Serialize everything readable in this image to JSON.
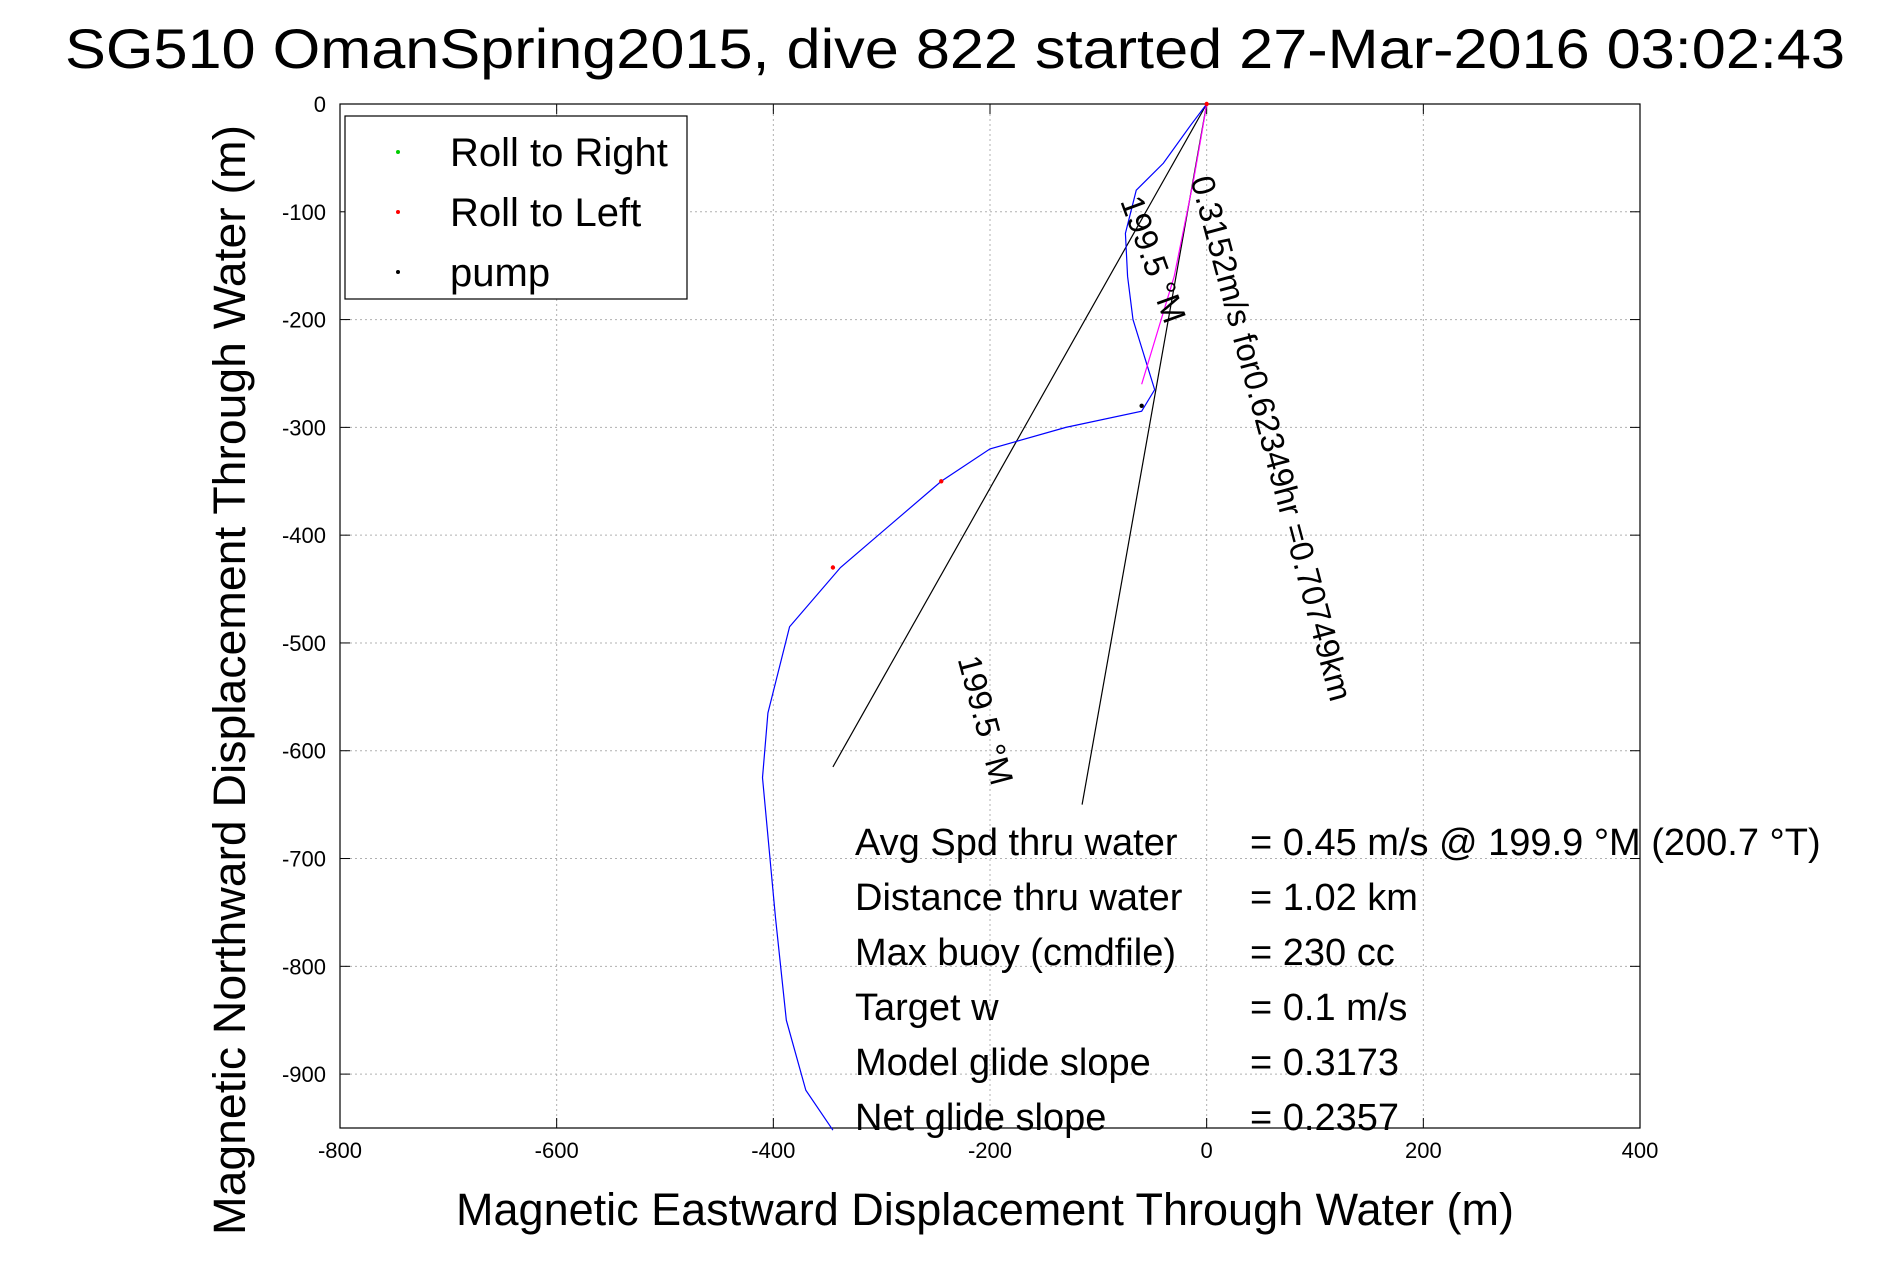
{
  "chart_data": {
    "type": "line",
    "title": "SG510 OmanSpring2015, dive 822 started 27-Mar-2016 03:02:43",
    "xlabel": "Magnetic Eastward Displacement Through Water (m)",
    "ylabel": "Magnetic Northward Displacement Through Water (m)",
    "xlim": [
      -800,
      400
    ],
    "ylim": [
      -950,
      0
    ],
    "grid": true,
    "xticks": [
      "-800",
      "-600",
      "-400",
      "-200",
      "0",
      "200",
      "400"
    ],
    "yticks": [
      "0",
      "-100",
      "-200",
      "-300",
      "-400",
      "-500",
      "-600",
      "-700",
      "-800",
      "-900"
    ],
    "legend": {
      "placement": "top-left",
      "entries": [
        {
          "label": "Roll to Right",
          "color": "#00cc00"
        },
        {
          "label": "Roll to Left",
          "color": "#ff0000"
        },
        {
          "label": "pump",
          "color": "#000000"
        }
      ]
    },
    "series": [
      {
        "color": "#0000ff",
        "x": [
          0,
          -15,
          -40,
          -65,
          -75,
          -73,
          -68,
          -48,
          -60,
          -130,
          -200,
          -245,
          -338,
          -385,
          -405,
          -410,
          -398,
          -388,
          -370,
          -345
        ],
        "y": [
          0,
          -20,
          -55,
          -80,
          -120,
          -160,
          -200,
          -265,
          -285,
          -300,
          -320,
          -350,
          -430,
          -485,
          -565,
          -625,
          -755,
          -850,
          -915,
          -952
        ]
      },
      {
        "color": "#ff00ff",
        "x": [
          0,
          -5,
          -12,
          -20,
          -30,
          -45,
          -60
        ],
        "y": [
          0,
          -30,
          -70,
          -110,
          -160,
          -210,
          -260
        ]
      }
    ],
    "markers": [
      {
        "series": "Roll to Left",
        "color": "#ff0000",
        "x": -245,
        "y": -350
      },
      {
        "series": "Roll to Left",
        "color": "#ff0000",
        "x": -345,
        "y": -430
      },
      {
        "series": "pump",
        "color": "#000000",
        "x": -60,
        "y": -280
      },
      {
        "series": "Roll to Left",
        "color": "#ff0000",
        "x": 0,
        "y": 0
      }
    ],
    "reference_lines": [
      {
        "color": "#000000",
        "x": [
          0,
          -345
        ],
        "y": [
          0,
          -615
        ]
      },
      {
        "color": "#000000",
        "x": [
          0,
          -115
        ],
        "y": [
          0,
          -650
        ]
      }
    ],
    "slanted_labels": [
      {
        "text": "199.5 °M",
        "x": -80,
        "y": -90,
        "angle": 70
      },
      {
        "text": "0.3152m/s for0.62349hr =0.70749km",
        "x": -15,
        "y": -70,
        "angle": 75
      },
      {
        "text": "199.5 °M",
        "x": -230,
        "y": -515,
        "angle": 75
      }
    ],
    "annotations": [
      {
        "label": "Avg Spd thru water",
        "value": "=  0.45 m/s @ 199.9 °M (200.7 °T)"
      },
      {
        "label": "Distance thru water",
        "value": "=  1.02 km"
      },
      {
        "label": "Max buoy (cmdfile)",
        "value": "= 230 cc"
      },
      {
        "label": "Target w",
        "value": "= 0.1 m/s"
      },
      {
        "label": "Model glide slope",
        "value": "= 0.3173"
      },
      {
        "label": "Net glide slope",
        "value": "= 0.2357"
      }
    ]
  }
}
